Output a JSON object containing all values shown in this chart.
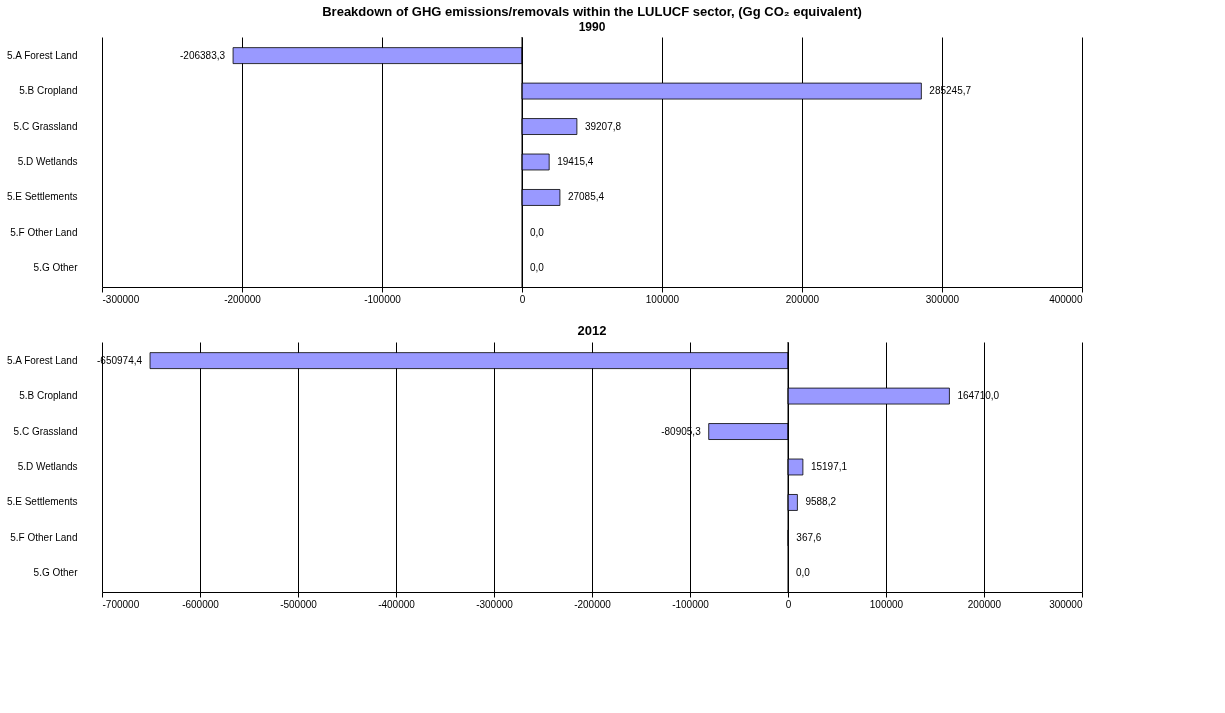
{
  "chart_data": [
    {
      "type": "bar",
      "orientation": "horizontal",
      "title": "Breakdown of GHG emissions/removals within the LULUCF sector, (Gg CO₂ equivalent)",
      "subtitle": "1990",
      "categories": [
        "5.A Forest Land",
        "5.B Cropland",
        "5.C Grassland",
        "5.D Wetlands",
        "5.E Settlements",
        "5.F Other Land",
        "5.G Other"
      ],
      "values": [
        -206383.3,
        285245.7,
        39207.8,
        19415.4,
        27085.4,
        0.0,
        0.0
      ],
      "value_labels": [
        "-206383,3",
        "285245,7",
        "39207,8",
        "19415,4",
        "27085,4",
        "0,0",
        "0,0"
      ],
      "color": "#9999ff",
      "xlim": [
        -300000,
        400000
      ],
      "xticks": [
        -300000,
        -200000,
        -100000,
        0,
        100000,
        200000,
        300000,
        400000
      ],
      "grid": "x"
    },
    {
      "type": "bar",
      "orientation": "horizontal",
      "title": "2012",
      "categories": [
        "5.A Forest Land",
        "5.B Cropland",
        "5.C Grassland",
        "5.D Wetlands",
        "5.E Settlements",
        "5.F Other Land",
        "5.G Other"
      ],
      "values": [
        -650974.4,
        164710.0,
        -80905.3,
        15197.1,
        9588.2,
        367.6,
        0.0
      ],
      "value_labels": [
        "-650974,4",
        "164710,0",
        "-80905,3",
        "15197,1",
        "9588,2",
        "367,6",
        "0,0"
      ],
      "color": "#9999ff",
      "xlim": [
        -700000,
        300000
      ],
      "xticks": [
        -700000,
        -600000,
        -500000,
        -400000,
        -300000,
        -200000,
        -100000,
        0,
        100000,
        200000,
        300000
      ],
      "grid": "x"
    }
  ]
}
